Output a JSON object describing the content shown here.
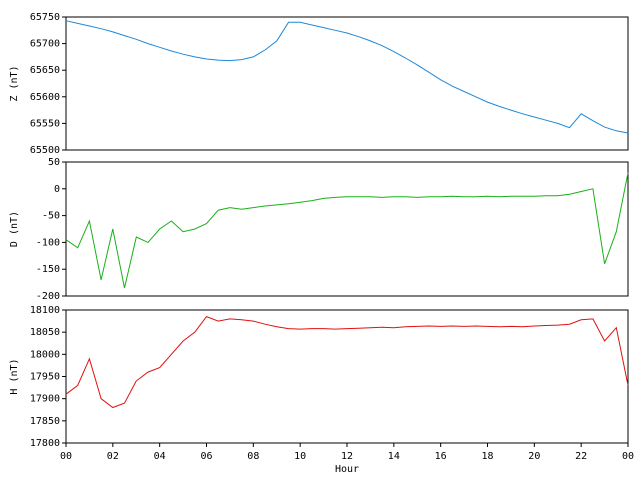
{
  "chart_data": [
    {
      "type": "line",
      "ylabel": "Z (nT)",
      "color": "#1f88d8",
      "xlim": [
        0,
        24
      ],
      "ylim": [
        65500,
        65750
      ],
      "yticks": [
        65500,
        65550,
        65600,
        65650,
        65700,
        65750
      ],
      "x": [
        0,
        0.5,
        1,
        1.5,
        2,
        2.5,
        3,
        3.5,
        4,
        4.5,
        5,
        5.5,
        6,
        6.5,
        7,
        7.5,
        8,
        8.5,
        9,
        9.5,
        10,
        10.5,
        11,
        11.5,
        12,
        12.5,
        13,
        13.5,
        14,
        14.5,
        15,
        15.5,
        16,
        16.5,
        17,
        17.5,
        18,
        18.5,
        19,
        19.5,
        20,
        20.5,
        21,
        21.5,
        22,
        22.5,
        23,
        23.5,
        24
      ],
      "values": [
        65743,
        65738,
        65733,
        65728,
        65722,
        65715,
        65708,
        65700,
        65693,
        65686,
        65680,
        65675,
        65671,
        65669,
        65668,
        65670,
        65675,
        65688,
        65705,
        65740,
        65740,
        65735,
        65730,
        65725,
        65720,
        65713,
        65705,
        65696,
        65685,
        65673,
        65660,
        65646,
        65632,
        65620,
        65610,
        65600,
        65590,
        65582,
        65575,
        65568,
        65562,
        65556,
        65550,
        65542,
        65568,
        65555,
        65543,
        65536,
        65532
      ]
    },
    {
      "type": "line",
      "ylabel": "D (nT)",
      "color": "#19b019",
      "xlim": [
        0,
        24
      ],
      "ylim": [
        -200,
        50
      ],
      "yticks": [
        -200,
        -150,
        -100,
        -50,
        0,
        50
      ],
      "x": [
        0,
        0.5,
        1,
        1.5,
        2,
        2.5,
        3,
        3.5,
        4,
        4.5,
        5,
        5.5,
        6,
        6.5,
        7,
        7.5,
        8,
        8.5,
        9,
        9.5,
        10,
        10.5,
        11,
        11.5,
        12,
        12.5,
        13,
        13.5,
        14,
        14.5,
        15,
        15.5,
        16,
        16.5,
        17,
        17.5,
        18,
        18.5,
        19,
        19.5,
        20,
        20.5,
        21,
        21.5,
        22,
        22.5,
        23,
        23.5,
        24
      ],
      "values": [
        -95,
        -110,
        -60,
        -170,
        -75,
        -185,
        -90,
        -100,
        -75,
        -60,
        -80,
        -75,
        -65,
        -40,
        -35,
        -38,
        -35,
        -32,
        -30,
        -28,
        -25,
        -22,
        -18,
        -16,
        -15,
        -15,
        -15,
        -16,
        -15,
        -15,
        -16,
        -15,
        -15,
        -14,
        -15,
        -15,
        -14,
        -15,
        -14,
        -14,
        -14,
        -13,
        -13,
        -10,
        -5,
        0,
        -140,
        -80,
        30
      ]
    },
    {
      "type": "line",
      "ylabel": "H (nT)",
      "xlabel": "Hour",
      "color": "#e01010",
      "xlim": [
        0,
        24
      ],
      "ylim": [
        17800,
        18100
      ],
      "yticks": [
        17800,
        17850,
        17900,
        17950,
        18000,
        18050,
        18100
      ],
      "xticks": [
        {
          "value": 0,
          "label": "00"
        },
        {
          "value": 2,
          "label": "02"
        },
        {
          "value": 4,
          "label": "04"
        },
        {
          "value": 6,
          "label": "06"
        },
        {
          "value": 8,
          "label": "08"
        },
        10,
        12,
        14,
        16,
        18,
        20,
        22,
        {
          "value": 24,
          "label": "00"
        }
      ],
      "x": [
        0,
        0.5,
        1,
        1.5,
        2,
        2.5,
        3,
        3.5,
        4,
        4.5,
        5,
        5.5,
        6,
        6.5,
        7,
        7.5,
        8,
        8.5,
        9,
        9.5,
        10,
        10.5,
        11,
        11.5,
        12,
        12.5,
        13,
        13.5,
        14,
        14.5,
        15,
        15.5,
        16,
        16.5,
        17,
        17.5,
        18,
        18.5,
        19,
        19.5,
        20,
        20.5,
        21,
        21.5,
        22,
        22.5,
        23,
        23.5,
        24
      ],
      "values": [
        17910,
        17930,
        17990,
        17900,
        17880,
        17890,
        17940,
        17960,
        17970,
        18000,
        18030,
        18050,
        18085,
        18075,
        18080,
        18078,
        18075,
        18068,
        18062,
        18058,
        18057,
        18058,
        18058,
        18057,
        18058,
        18059,
        18060,
        18061,
        18060,
        18062,
        18063,
        18064,
        18063,
        18064,
        18063,
        18064,
        18063,
        18062,
        18063,
        18062,
        18064,
        18065,
        18066,
        18068,
        18078,
        18080,
        18030,
        18060,
        17930
      ]
    }
  ]
}
